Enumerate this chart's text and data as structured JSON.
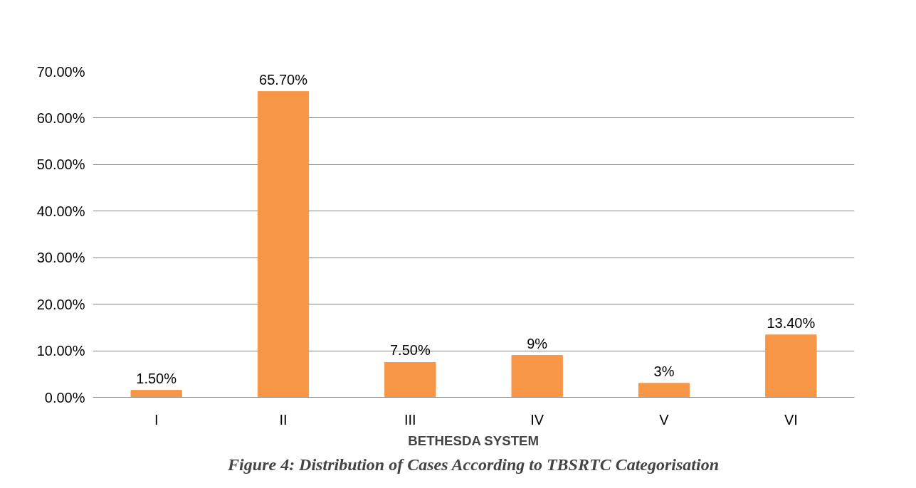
{
  "chart_data": {
    "type": "bar",
    "title": "Figure 4: Distribution of Cases According to TBSRTC Categorisation",
    "xlabel": "BETHESDA SYSTEM",
    "categories": [
      "I",
      "II",
      "III",
      "IV",
      "V",
      "VI"
    ],
    "values": [
      1.5,
      65.7,
      7.5,
      9,
      3,
      13.4
    ],
    "value_labels": [
      "1.50%",
      "65.70%",
      "7.50%",
      "9%",
      "3%",
      "13.40%"
    ],
    "color": "#f79646",
    "ylim": [
      0,
      70
    ],
    "yticks": [
      {
        "value": 0,
        "label": "0.00%"
      },
      {
        "value": 10,
        "label": "10.00%"
      },
      {
        "value": 20,
        "label": "20.00%"
      },
      {
        "value": 30,
        "label": "30.00%"
      },
      {
        "value": 40,
        "label": "40.00%"
      },
      {
        "value": 50,
        "label": "50.00%"
      },
      {
        "value": 60,
        "label": "60.00%"
      },
      {
        "value": 70,
        "label": "70.00%"
      }
    ],
    "grid": "y"
  }
}
